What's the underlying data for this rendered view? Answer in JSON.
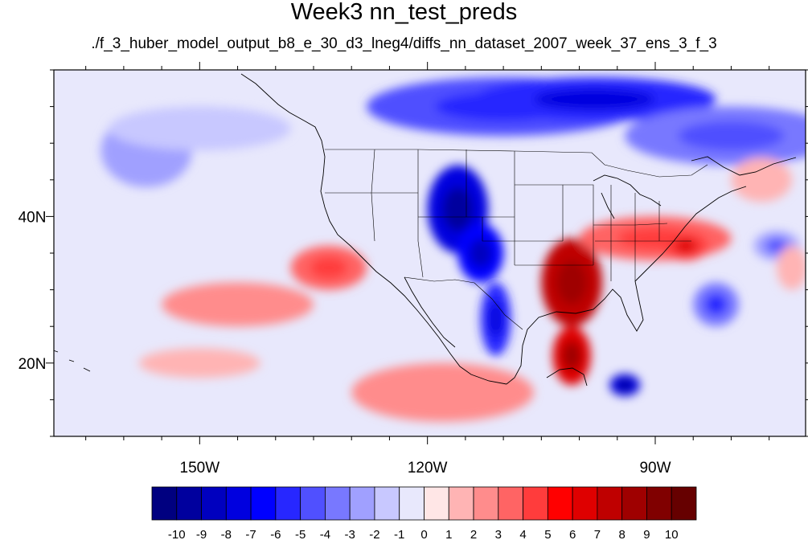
{
  "title": "Week3 nn_test_preds",
  "subtitle": "./f_3_huber_model_output_b8_e_30_d3_lneg4/diffs_nn_dataset_2007_week_37_ens_3_f_3",
  "axes": {
    "lon_range": [
      -169.2,
      -70.2
    ],
    "lat_range": [
      10,
      60
    ],
    "lon_ticks": [
      {
        "value": -150,
        "label": "150W"
      },
      {
        "value": -120,
        "label": "120W"
      },
      {
        "value": -90,
        "label": "90W"
      }
    ],
    "lat_ticks": [
      {
        "value": 40,
        "label": "40N"
      },
      {
        "value": 20,
        "label": "20N"
      }
    ]
  },
  "colorbar": {
    "levels": [
      "-10",
      "-9",
      "-8",
      "-7",
      "-6",
      "-5",
      "-4",
      "-3",
      "-2",
      "-1",
      "0",
      "1",
      "2",
      "3",
      "4",
      "5",
      "6",
      "7",
      "8",
      "9",
      "10"
    ],
    "colors": [
      "#000080",
      "#00009e",
      "#0000bf",
      "#0000df",
      "#0000ff",
      "#2727ff",
      "#5050ff",
      "#7878ff",
      "#a0a0ff",
      "#c8c8ff",
      "#e8e8fc",
      "#ffe6e6",
      "#ffb4b4",
      "#ff8c8c",
      "#ff6464",
      "#ff3c3c",
      "#ff0000",
      "#df0000",
      "#bf0000",
      "#9f0000",
      "#800000",
      "#660000"
    ]
  },
  "chart_data": {
    "type": "heatmap",
    "title": "Week3 nn_test_preds",
    "subtitle": "./f_3_huber_model_output_b8_e_30_d3_lneg4/diffs_nn_dataset_2007_week_37_ens_3_f_3",
    "xlim": [
      -169.2,
      -70.2
    ],
    "ylim": [
      10,
      60
    ],
    "background_value": -0.5,
    "features": [
      {
        "lon": -157,
        "lat": 49,
        "rx": 6,
        "ry": 5,
        "value": -2.2
      },
      {
        "lon": -150,
        "lat": 52,
        "rx": 12,
        "ry": 3,
        "value": -1.5
      },
      {
        "lon": -110,
        "lat": 55,
        "rx": 18,
        "ry": 4,
        "value": -4.5
      },
      {
        "lon": -98,
        "lat": 56,
        "rx": 16,
        "ry": 3,
        "value": -6
      },
      {
        "lon": -80,
        "lat": 51,
        "rx": 14,
        "ry": 4,
        "value": -3.5
      },
      {
        "lon": -116,
        "lat": 41,
        "rx": 4,
        "ry": 6,
        "value": -8
      },
      {
        "lon": -113,
        "lat": 35,
        "rx": 3,
        "ry": 4,
        "value": -7
      },
      {
        "lon": -111,
        "lat": 26,
        "rx": 2,
        "ry": 5,
        "value": -6
      },
      {
        "lon": -101,
        "lat": 31,
        "rx": 4,
        "ry": 6,
        "value": 7
      },
      {
        "lon": -101,
        "lat": 21,
        "rx": 2.5,
        "ry": 4,
        "value": 6.5
      },
      {
        "lon": -90,
        "lat": 37,
        "rx": 10,
        "ry": 3,
        "value": 3
      },
      {
        "lon": -86,
        "lat": 36,
        "rx": 3,
        "ry": 2,
        "value": 4.5
      },
      {
        "lon": -82,
        "lat": 28,
        "rx": 3,
        "ry": 3,
        "value": -4
      },
      {
        "lon": -74,
        "lat": 36,
        "rx": 3,
        "ry": 2,
        "value": -3
      },
      {
        "lon": -94,
        "lat": 17,
        "rx": 2,
        "ry": 1.5,
        "value": -8
      },
      {
        "lon": -145,
        "lat": 28,
        "rx": 10,
        "ry": 3,
        "value": 2.2
      },
      {
        "lon": -133,
        "lat": 33,
        "rx": 5,
        "ry": 3,
        "value": 3
      },
      {
        "lon": -118,
        "lat": 16,
        "rx": 12,
        "ry": 4,
        "value": 2.2
      },
      {
        "lon": -150,
        "lat": 20,
        "rx": 8,
        "ry": 2,
        "value": 1.5
      },
      {
        "lon": -76,
        "lat": 45,
        "rx": 4,
        "ry": 3,
        "value": 1
      },
      {
        "lon": -72,
        "lat": 33,
        "rx": 2,
        "ry": 3,
        "value": 1.5
      }
    ]
  }
}
